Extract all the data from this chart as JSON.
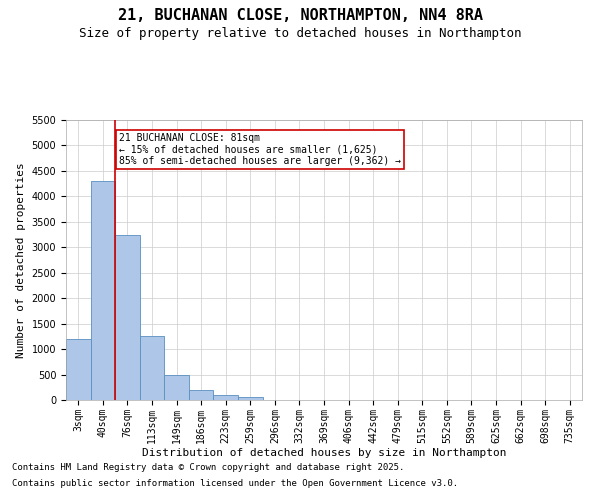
{
  "title": "21, BUCHANAN CLOSE, NORTHAMPTON, NN4 8RA",
  "subtitle": "Size of property relative to detached houses in Northampton",
  "xlabel": "Distribution of detached houses by size in Northampton",
  "ylabel": "Number of detached properties",
  "categories": [
    "3sqm",
    "40sqm",
    "76sqm",
    "113sqm",
    "149sqm",
    "186sqm",
    "223sqm",
    "259sqm",
    "296sqm",
    "332sqm",
    "369sqm",
    "406sqm",
    "442sqm",
    "479sqm",
    "515sqm",
    "552sqm",
    "589sqm",
    "625sqm",
    "662sqm",
    "698sqm",
    "735sqm"
  ],
  "values": [
    1200,
    4300,
    3250,
    1250,
    500,
    200,
    100,
    65,
    0,
    0,
    0,
    0,
    0,
    0,
    0,
    0,
    0,
    0,
    0,
    0,
    0
  ],
  "bar_color": "#aec6e8",
  "bar_edge_color": "#5a8fc0",
  "vline_x_index": 1.5,
  "vline_color": "#cc0000",
  "annotation_text": "21 BUCHANAN CLOSE: 81sqm\n← 15% of detached houses are smaller (1,625)\n85% of semi-detached houses are larger (9,362) →",
  "annotation_box_color": "#ffffff",
  "annotation_box_edge_color": "#cc0000",
  "ylim": [
    0,
    5500
  ],
  "yticks": [
    0,
    500,
    1000,
    1500,
    2000,
    2500,
    3000,
    3500,
    4000,
    4500,
    5000,
    5500
  ],
  "background_color": "#ffffff",
  "grid_color": "#cccccc",
  "footer_line1": "Contains HM Land Registry data © Crown copyright and database right 2025.",
  "footer_line2": "Contains public sector information licensed under the Open Government Licence v3.0.",
  "title_fontsize": 11,
  "subtitle_fontsize": 9,
  "axis_label_fontsize": 8,
  "tick_fontsize": 7,
  "annotation_fontsize": 7,
  "footer_fontsize": 6.5
}
